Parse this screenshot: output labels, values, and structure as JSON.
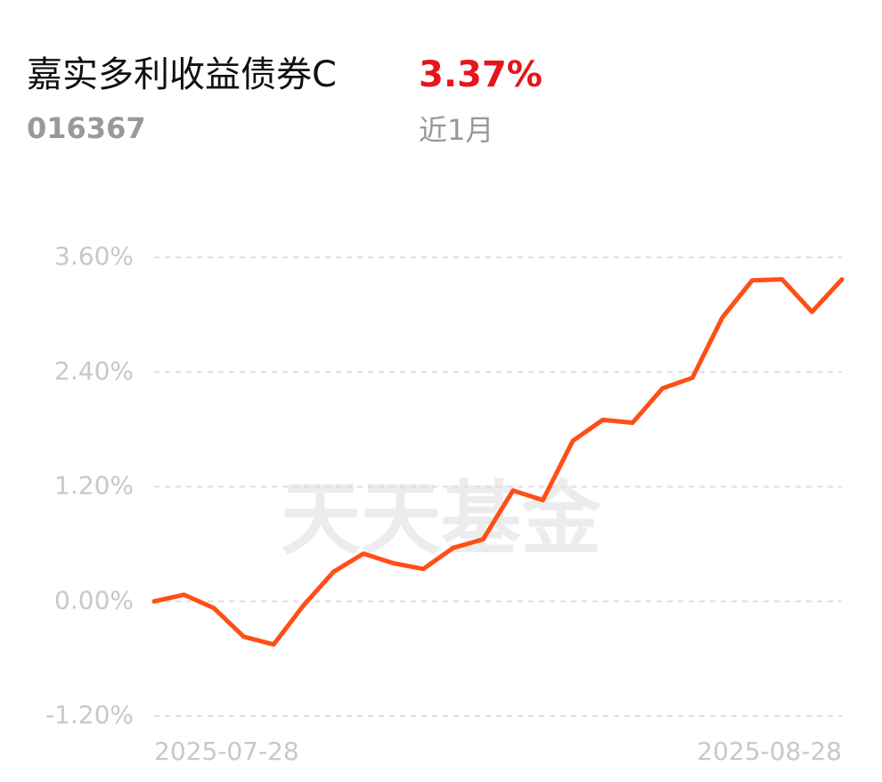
{
  "chart_data": {
    "type": "line",
    "title": "嘉实多利收益债券C",
    "headline": {
      "value": 3.37,
      "label": "3.37%"
    },
    "code": "016367",
    "period": "近1月",
    "watermark": "天天基金",
    "categories": [
      "2025-07-28",
      null,
      null,
      null,
      null,
      null,
      null,
      null,
      null,
      null,
      null,
      null,
      null,
      null,
      null,
      null,
      null,
      null,
      null,
      null,
      null,
      null,
      null,
      "2025-08-28"
    ],
    "series": [
      {
        "color": "#ff4e17",
        "values": [
          0.0,
          0.07,
          -0.07,
          -0.37,
          -0.45,
          -0.04,
          0.31,
          0.5,
          0.4,
          0.34,
          0.56,
          0.65,
          1.16,
          1.06,
          1.68,
          1.9,
          1.87,
          2.23,
          2.34,
          2.97,
          3.36,
          3.37,
          3.03,
          3.37
        ]
      }
    ],
    "ylim": [
      -1.2,
      3.6
    ],
    "yticks": [
      {
        "value": 3.6,
        "label": "3.60%"
      },
      {
        "value": 2.4,
        "label": "2.40%"
      },
      {
        "value": 1.2,
        "label": "1.20%"
      },
      {
        "value": 0,
        "label": "0.00%"
      },
      {
        "value": -1.2,
        "label": "-1.20%"
      }
    ],
    "grid": true
  }
}
